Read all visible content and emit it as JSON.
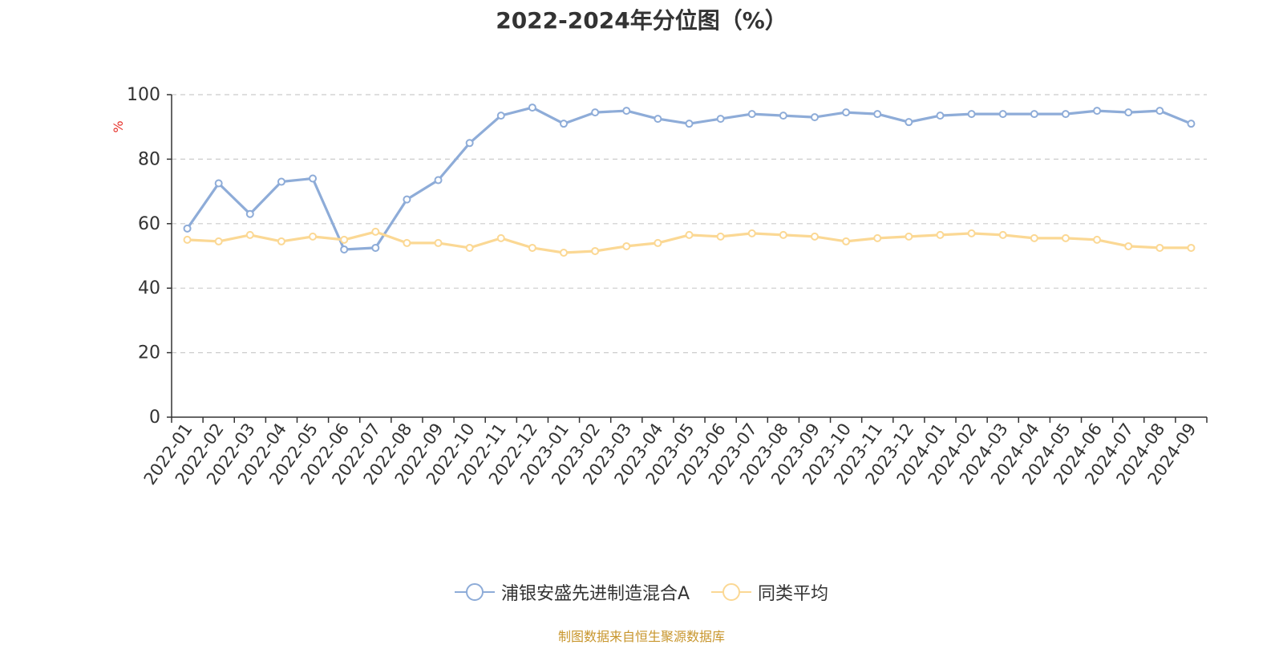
{
  "chart_data": {
    "type": "line",
    "title": "2022-2024年分位图（%）",
    "ylabel": "%",
    "xlabel": "",
    "ylim": [
      0,
      100
    ],
    "yticks": [
      0,
      20,
      40,
      60,
      80,
      100
    ],
    "grid": true,
    "legend_position": "bottom",
    "x": [
      "2022-01",
      "2022-02",
      "2022-03",
      "2022-04",
      "2022-05",
      "2022-06",
      "2022-07",
      "2022-08",
      "2022-09",
      "2022-10",
      "2022-11",
      "2022-12",
      "2023-01",
      "2023-02",
      "2023-03",
      "2023-04",
      "2023-05",
      "2023-06",
      "2023-07",
      "2023-08",
      "2023-09",
      "2023-10",
      "2023-11",
      "2023-12",
      "2024-01",
      "2024-02",
      "2024-03",
      "2024-04",
      "2024-05",
      "2024-06",
      "2024-07",
      "2024-08",
      "2024-09"
    ],
    "series": [
      {
        "name": "浦银安盛先进制造混合A",
        "color": "#8eacd8",
        "values": [
          58.5,
          72.5,
          63,
          73,
          74,
          52,
          52.5,
          67.5,
          73.5,
          85,
          93.5,
          96,
          91,
          94.5,
          95,
          92.5,
          91,
          92.5,
          94,
          93.5,
          93,
          94.5,
          94,
          91.5,
          93.5,
          94,
          94,
          94,
          94,
          95,
          94.5,
          95,
          91
        ]
      },
      {
        "name": "同类平均",
        "color": "#fbd894",
        "values": [
          55,
          54.5,
          56.5,
          54.5,
          56,
          55,
          57.5,
          54,
          54,
          52.5,
          55.5,
          52.5,
          51,
          51.5,
          53,
          54,
          56.5,
          56,
          57,
          56.5,
          56,
          54.5,
          55.5,
          56,
          56.5,
          57,
          56.5,
          55.5,
          55.5,
          55,
          53,
          52.5,
          52.5
        ]
      }
    ]
  },
  "source_text": "制图数据来自恒生聚源数据库"
}
